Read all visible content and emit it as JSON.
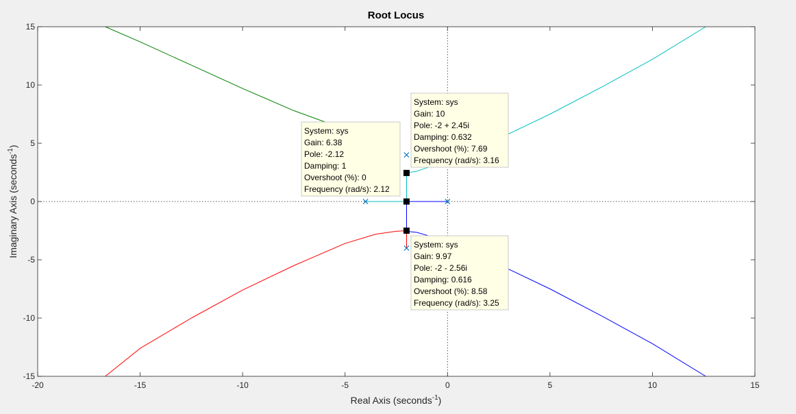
{
  "chart_data": {
    "type": "line",
    "title": "Root Locus",
    "xlabel": "Real Axis (seconds",
    "ylabel": "Imaginary Axis (seconds",
    "axis_unit_superscript": "-1",
    "xlim": [
      -20,
      15
    ],
    "ylim": [
      -15,
      15
    ],
    "xticks": [
      -20,
      -15,
      -10,
      -5,
      0,
      5,
      10,
      15
    ],
    "yticks": [
      -15,
      -10,
      -5,
      0,
      5,
      10,
      15
    ],
    "grid": false,
    "zero_lines": "dotted",
    "series": [
      {
        "color": "#00bfbf",
        "points": [
          [
            -4,
            0
          ],
          [
            -2,
            0
          ],
          [
            -2,
            2.45
          ],
          [
            -1.5,
            2.6
          ],
          [
            -1,
            2.9
          ],
          [
            0,
            3.6
          ],
          [
            2.5,
            5.4
          ],
          [
            5,
            7.5
          ],
          [
            7.5,
            9.8
          ],
          [
            10,
            12.2
          ],
          [
            12.6,
            15
          ]
        ]
      },
      {
        "color": "#0000ff",
        "points": [
          [
            0,
            0
          ],
          [
            -2,
            0
          ],
          [
            -2,
            -2.56
          ],
          [
            -1.5,
            -2.65
          ],
          [
            -1,
            -2.9
          ],
          [
            0,
            -3.6
          ],
          [
            2.5,
            -5.4
          ],
          [
            5,
            -7.5
          ],
          [
            7.5,
            -9.8
          ],
          [
            10,
            -12.2
          ],
          [
            12.6,
            -15
          ]
        ]
      },
      {
        "color": "#008000",
        "points": [
          [
            -2.4,
            5.2
          ],
          [
            -5,
            6.2
          ],
          [
            -7.5,
            7.8
          ],
          [
            -10,
            9.7
          ],
          [
            -12.5,
            11.7
          ],
          [
            -15,
            13.7
          ],
          [
            -16.7,
            15
          ]
        ]
      },
      {
        "color": "#ff0000",
        "points": [
          [
            -2,
            -4
          ],
          [
            -2,
            -2.5
          ],
          [
            -2.5,
            -2.55
          ],
          [
            -3.5,
            -2.8
          ],
          [
            -5,
            -3.6
          ],
          [
            -7.5,
            -5.5
          ],
          [
            -10,
            -7.6
          ],
          [
            -12.5,
            -10
          ],
          [
            -15,
            -12.6
          ],
          [
            -16.7,
            -15
          ]
        ]
      }
    ],
    "poles": [
      [
        -4,
        0
      ],
      [
        0,
        0
      ],
      [
        -2,
        4
      ],
      [
        -2,
        -4
      ]
    ],
    "markers": [
      [
        -2,
        0
      ],
      [
        -2,
        2.45
      ],
      [
        -2,
        -2.5
      ]
    ],
    "datatips": [
      {
        "lines": [
          "System: sys",
          "Gain: 6.38",
          "Pole: -2.12",
          "Damping: 1",
          "Overshoot (%): 0",
          "Frequency (rad/s): 2.12"
        ]
      },
      {
        "lines": [
          "System: sys",
          "Gain: 10",
          "Pole: -2 + 2.45i",
          "Damping: 0.632",
          "Overshoot (%): 7.69",
          "Frequency (rad/s): 3.16"
        ]
      },
      {
        "lines": [
          "System: sys",
          "Gain: 9.97",
          "Pole: -2 - 2.56i",
          "Damping: 0.616",
          "Overshoot (%): 8.58",
          "Frequency (rad/s): 3.25"
        ]
      }
    ]
  }
}
